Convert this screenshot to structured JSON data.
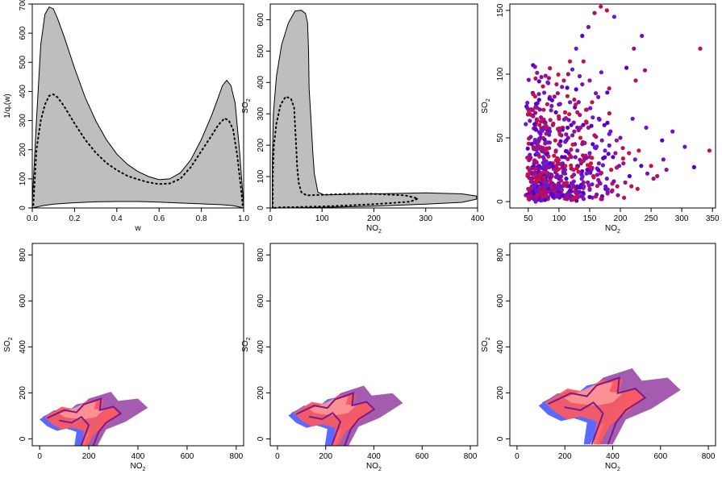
{
  "chart_data": [
    {
      "type": "area",
      "xlabel": "w",
      "ylabel": "1/q",
      "ylabel_sub": "*",
      "ylabel_tail": "(w)",
      "xlim": [
        0,
        1
      ],
      "ylim": [
        0,
        700
      ],
      "x_ticks": [
        0.0,
        0.2,
        0.4,
        0.6,
        0.8,
        1.0
      ],
      "x_tick_labels": [
        "0.0",
        "0.2",
        "0.4",
        "0.6",
        "0.8",
        "1.0"
      ],
      "y_ticks": [
        0,
        100,
        200,
        300,
        400,
        500,
        600,
        700
      ],
      "y_tick_labels": [
        "0",
        "100",
        "200",
        "300",
        "400",
        "500",
        "600",
        "700"
      ],
      "band_upper": [
        [
          0.0,
          20
        ],
        [
          0.02,
          300
        ],
        [
          0.04,
          560
        ],
        [
          0.06,
          665
        ],
        [
          0.08,
          690
        ],
        [
          0.1,
          683
        ],
        [
          0.12,
          650
        ],
        [
          0.15,
          590
        ],
        [
          0.2,
          480
        ],
        [
          0.25,
          380
        ],
        [
          0.3,
          300
        ],
        [
          0.35,
          235
        ],
        [
          0.4,
          185
        ],
        [
          0.45,
          150
        ],
        [
          0.5,
          125
        ],
        [
          0.55,
          108
        ],
        [
          0.6,
          97
        ],
        [
          0.65,
          100
        ],
        [
          0.7,
          120
        ],
        [
          0.75,
          165
        ],
        [
          0.8,
          235
        ],
        [
          0.85,
          320
        ],
        [
          0.88,
          380
        ],
        [
          0.9,
          420
        ],
        [
          0.92,
          438
        ],
        [
          0.94,
          420
        ],
        [
          0.96,
          360
        ],
        [
          0.98,
          200
        ],
        [
          1.0,
          10
        ]
      ],
      "band_lower": [
        [
          0.0,
          0
        ],
        [
          0.05,
          8
        ],
        [
          0.1,
          13
        ],
        [
          0.2,
          18
        ],
        [
          0.3,
          21
        ],
        [
          0.4,
          22
        ],
        [
          0.5,
          22
        ],
        [
          0.6,
          20
        ],
        [
          0.7,
          17
        ],
        [
          0.8,
          14
        ],
        [
          0.9,
          11
        ],
        [
          0.95,
          8
        ],
        [
          1.0,
          0
        ]
      ],
      "dotted": [
        [
          0.005,
          10
        ],
        [
          0.02,
          200
        ],
        [
          0.04,
          300
        ],
        [
          0.06,
          355
        ],
        [
          0.08,
          385
        ],
        [
          0.1,
          390
        ],
        [
          0.12,
          380
        ],
        [
          0.15,
          350
        ],
        [
          0.2,
          290
        ],
        [
          0.25,
          235
        ],
        [
          0.3,
          190
        ],
        [
          0.35,
          155
        ],
        [
          0.4,
          130
        ],
        [
          0.45,
          110
        ],
        [
          0.5,
          98
        ],
        [
          0.55,
          88
        ],
        [
          0.6,
          82
        ],
        [
          0.65,
          84
        ],
        [
          0.7,
          100
        ],
        [
          0.75,
          140
        ],
        [
          0.8,
          195
        ],
        [
          0.85,
          250
        ],
        [
          0.88,
          285
        ],
        [
          0.91,
          308
        ],
        [
          0.93,
          300
        ],
        [
          0.95,
          270
        ],
        [
          0.97,
          180
        ],
        [
          0.99,
          50
        ],
        [
          0.995,
          10
        ]
      ]
    },
    {
      "type": "area",
      "xlabel": "NO",
      "xlabel_sub": "2",
      "ylabel": "SO",
      "ylabel_sub": "2",
      "xlim": [
        0,
        400
      ],
      "ylim": [
        0,
        650
      ],
      "x_ticks": [
        0,
        100,
        200,
        300,
        400
      ],
      "x_tick_labels": [
        "0",
        "100",
        "200",
        "300",
        "400"
      ],
      "y_ticks": [
        0,
        100,
        200,
        300,
        400,
        500,
        600
      ],
      "y_tick_labels": [
        "0",
        "100",
        "200",
        "300",
        "400",
        "500",
        "600"
      ],
      "region": [
        [
          4,
          0
        ],
        [
          4,
          150
        ],
        [
          6,
          300
        ],
        [
          12,
          420
        ],
        [
          22,
          520
        ],
        [
          35,
          590
        ],
        [
          48,
          628
        ],
        [
          60,
          630
        ],
        [
          68,
          620
        ],
        [
          72,
          590
        ],
        [
          74,
          500
        ],
        [
          75,
          380
        ],
        [
          78,
          300
        ],
        [
          80,
          240
        ],
        [
          82,
          180
        ],
        [
          85,
          110
        ],
        [
          92,
          50
        ],
        [
          104,
          42
        ],
        [
          200,
          45
        ],
        [
          300,
          48
        ],
        [
          370,
          45
        ],
        [
          398,
          38
        ],
        [
          398,
          28
        ],
        [
          370,
          18
        ],
        [
          300,
          12
        ],
        [
          200,
          6
        ],
        [
          100,
          2
        ],
        [
          40,
          0
        ],
        [
          4,
          0
        ]
      ],
      "dotted": [
        [
          5,
          0
        ],
        [
          5,
          100
        ],
        [
          7,
          200
        ],
        [
          12,
          270
        ],
        [
          20,
          330
        ],
        [
          30,
          355
        ],
        [
          40,
          348
        ],
        [
          46,
          320
        ],
        [
          48,
          260
        ],
        [
          50,
          200
        ],
        [
          52,
          130
        ],
        [
          55,
          80
        ],
        [
          60,
          50
        ],
        [
          70,
          40
        ],
        [
          150,
          45
        ],
        [
          200,
          45
        ],
        [
          260,
          40
        ],
        [
          285,
          30
        ],
        [
          270,
          20
        ],
        [
          200,
          12
        ],
        [
          150,
          8
        ],
        [
          100,
          5
        ],
        [
          55,
          3
        ],
        [
          20,
          2
        ],
        [
          5,
          0
        ]
      ]
    },
    {
      "type": "scatter",
      "xlabel": "NO",
      "xlabel_sub": "2",
      "ylabel": "SO",
      "ylabel_sub": "2",
      "xlim": [
        20,
        355
      ],
      "ylim": [
        -5,
        155
      ],
      "x_ticks": [
        50,
        100,
        150,
        200,
        250,
        300,
        350
      ],
      "x_tick_labels": [
        "50",
        "100",
        "150",
        "200",
        "250",
        "300",
        "350"
      ],
      "y_ticks": [
        0,
        50,
        100,
        150
      ],
      "y_tick_labels": [
        "0",
        "50",
        "100",
        "150"
      ],
      "colors": [
        "#5500cc",
        "#7a10b8",
        "#9a0f8a",
        "#b8105e",
        "#cc1040",
        "#6a18d0"
      ],
      "points": [
        [
          60,
          5
        ],
        [
          70,
          12
        ],
        [
          80,
          20
        ],
        [
          90,
          30
        ],
        [
          100,
          45
        ],
        [
          110,
          25
        ],
        [
          120,
          60
        ],
        [
          130,
          40
        ],
        [
          140,
          15
        ],
        [
          150,
          35
        ],
        [
          75,
          8
        ],
        [
          85,
          55
        ],
        [
          95,
          70
        ],
        [
          105,
          90
        ],
        [
          115,
          100
        ],
        [
          125,
          80
        ],
        [
          135,
          50
        ],
        [
          145,
          22
        ],
        [
          155,
          45
        ],
        [
          165,
          30
        ],
        [
          50,
          10
        ],
        [
          55,
          3
        ],
        [
          65,
          18
        ],
        [
          72,
          40
        ],
        [
          78,
          62
        ],
        [
          88,
          75
        ],
        [
          98,
          85
        ],
        [
          108,
          95
        ],
        [
          118,
          110
        ],
        [
          128,
          120
        ],
        [
          138,
          130
        ],
        [
          148,
          137
        ],
        [
          158,
          148
        ],
        [
          168,
          153
        ],
        [
          178,
          150
        ],
        [
          190,
          145
        ],
        [
          210,
          105
        ],
        [
          235,
          130
        ],
        [
          240,
          103
        ],
        [
          330,
          120
        ],
        [
          345,
          40
        ],
        [
          305,
          43
        ],
        [
          320,
          27
        ],
        [
          270,
          33
        ],
        [
          275,
          25
        ],
        [
          260,
          20
        ],
        [
          250,
          28
        ],
        [
          220,
          65
        ],
        [
          215,
          20
        ],
        [
          200,
          50
        ],
        [
          205,
          30
        ],
        [
          195,
          12
        ],
        [
          185,
          25
        ],
        [
          175,
          40
        ],
        [
          165,
          65
        ],
        [
          160,
          85
        ],
        [
          150,
          95
        ],
        [
          140,
          110
        ],
        [
          130,
          70
        ],
        [
          120,
          35
        ],
        [
          112,
          18
        ],
        [
          102,
          8
        ],
        [
          92,
          3
        ],
        [
          82,
          2
        ],
        [
          72,
          1
        ],
        [
          62,
          0
        ],
        [
          58,
          15
        ],
        [
          68,
          28
        ],
        [
          76,
          33
        ],
        [
          84,
          42
        ],
        [
          94,
          48
        ],
        [
          104,
          52
        ],
        [
          114,
          58
        ],
        [
          124,
          62
        ],
        [
          134,
          68
        ],
        [
          144,
          72
        ],
        [
          154,
          78
        ],
        [
          164,
          82
        ],
        [
          174,
          60
        ],
        [
          184,
          55
        ],
        [
          194,
          48
        ],
        [
          204,
          42
        ],
        [
          214,
          38
        ],
        [
          224,
          33
        ],
        [
          234,
          28
        ],
        [
          244,
          22
        ],
        [
          254,
          18
        ],
        [
          46,
          5
        ],
        [
          52,
          8
        ],
        [
          56,
          12
        ],
        [
          62,
          22
        ],
        [
          66,
          26
        ],
        [
          74,
          15
        ],
        [
          86,
          20
        ],
        [
          96,
          25
        ],
        [
          106,
          30
        ],
        [
          116,
          38
        ],
        [
          126,
          45
        ],
        [
          136,
          30
        ],
        [
          146,
          25
        ],
        [
          156,
          20
        ],
        [
          166,
          15
        ],
        [
          176,
          10
        ],
        [
          186,
          8
        ],
        [
          196,
          5
        ],
        [
          206,
          3
        ],
        [
          80,
          10
        ],
        [
          90,
          14
        ],
        [
          100,
          18
        ],
        [
          110,
          22
        ],
        [
          120,
          26
        ],
        [
          130,
          28
        ],
        [
          140,
          32
        ],
        [
          150,
          38
        ],
        [
          160,
          42
        ],
        [
          170,
          48
        ],
        [
          90,
          60
        ],
        [
          100,
          65
        ],
        [
          110,
          70
        ],
        [
          95,
          40
        ],
        [
          105,
          35
        ],
        [
          115,
          50
        ],
        [
          125,
          55
        ],
        [
          135,
          58
        ],
        [
          145,
          62
        ],
        [
          155,
          66
        ],
        [
          70,
          50
        ],
        [
          80,
          38
        ],
        [
          60,
          32
        ],
        [
          75,
          72
        ],
        [
          85,
          82
        ],
        [
          118,
          78
        ],
        [
          128,
          88
        ],
        [
          138,
          92
        ],
        [
          148,
          58
        ],
        [
          158,
          52
        ],
        [
          168,
          22
        ],
        [
          178,
          18
        ],
        [
          188,
          35
        ],
        [
          198,
          28
        ],
        [
          208,
          15
        ],
        [
          218,
          12
        ],
        [
          228,
          10
        ],
        [
          110,
          5
        ],
        [
          120,
          8
        ],
        [
          130,
          12
        ],
        [
          140,
          6
        ],
        [
          150,
          10
        ],
        [
          160,
          4
        ],
        [
          170,
          2
        ],
        [
          88,
          7
        ],
        [
          98,
          11
        ],
        [
          108,
          14
        ],
        [
          96,
          92
        ],
        [
          106,
          58
        ],
        [
          116,
          64
        ],
        [
          126,
          74
        ],
        [
          66,
          44
        ],
        [
          76,
          26
        ],
        [
          86,
          64
        ],
        [
          92,
          36
        ],
        [
          102,
          44
        ],
        [
          112,
          48
        ],
        [
          122,
          52
        ],
        [
          132,
          56
        ],
        [
          142,
          46
        ],
        [
          152,
          30
        ],
        [
          162,
          26
        ],
        [
          172,
          34
        ],
        [
          182,
          44
        ],
        [
          192,
          38
        ],
        [
          225,
          95
        ],
        [
          230,
          40
        ],
        [
          242,
          58
        ],
        [
          268,
          48
        ],
        [
          285,
          55
        ],
        [
          222,
          120
        ]
      ]
    },
    {
      "type": "area",
      "xlabel": "NO",
      "xlabel_sub": "2",
      "ylabel": "SO",
      "ylabel_sub": "2",
      "xlim": [
        -30,
        830
      ],
      "ylim": [
        -30,
        850
      ],
      "x_ticks": [
        0,
        200,
        400,
        600,
        800
      ],
      "x_tick_labels": [
        "0",
        "200",
        "400",
        "600",
        "800"
      ],
      "y_ticks": [
        0,
        200,
        400,
        600,
        800
      ],
      "y_tick_labels": [
        "0",
        "200",
        "400",
        "600",
        "800"
      ],
      "shift_x": 0,
      "shift_y": 0,
      "scale": 1.0
    },
    {
      "type": "area",
      "xlabel": "NO",
      "xlabel_sub": "2",
      "ylabel": "SO",
      "ylabel_sub": "2",
      "xlim": [
        -30,
        830
      ],
      "ylim": [
        -30,
        850
      ],
      "x_ticks": [
        0,
        200,
        400,
        600,
        800
      ],
      "x_tick_labels": [
        "0",
        "200",
        "400",
        "600",
        "800"
      ],
      "y_ticks": [
        0,
        200,
        400,
        600,
        800
      ],
      "y_tick_labels": [
        "0",
        "200",
        "400",
        "600",
        "800"
      ],
      "shift_x": 45,
      "shift_y": 10,
      "scale": 1.08
    },
    {
      "type": "area",
      "xlabel": "NO",
      "xlabel_sub": "2",
      "ylabel": "SO",
      "ylabel_sub": "2",
      "xlim": [
        -30,
        830
      ],
      "ylim": [
        -30,
        850
      ],
      "x_ticks": [
        0,
        200,
        400,
        600,
        800
      ],
      "x_tick_labels": [
        "0",
        "200",
        "400",
        "600",
        "800"
      ],
      "y_ticks": [
        0,
        200,
        400,
        600,
        800
      ],
      "y_tick_labels": [
        "0",
        "200",
        "400",
        "600",
        "800"
      ],
      "shift_x": 90,
      "shift_y": 30,
      "scale": 1.35
    }
  ],
  "colors": {
    "band_fill": "#bebebe",
    "purple": "#a55cb0",
    "purple_line": "#7a1a8a",
    "red": "#ff5a5a",
    "red_dark": "#e0202a",
    "pink": "#ff9a9a",
    "blue": "#5a6aff"
  }
}
